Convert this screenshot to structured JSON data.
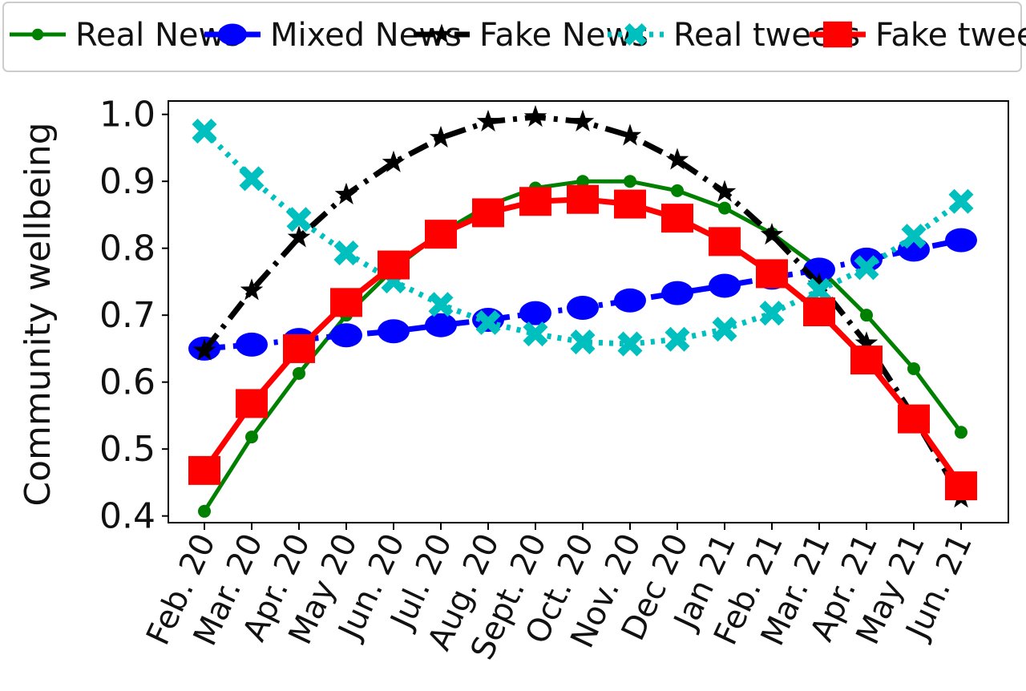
{
  "chart_data": {
    "type": "line",
    "title": "",
    "xlabel": "",
    "ylabel": "Community wellbeing",
    "ylim": [
      0.39,
      1.02
    ],
    "yticks": [
      "0.4",
      "0.5",
      "0.6",
      "0.7",
      "0.8",
      "0.9",
      "1.0"
    ],
    "categories": [
      "Feb. 20",
      "Mar. 20",
      "Apr. 20",
      "May 20",
      "Jun. 20",
      "Jul. 20",
      "Aug. 20",
      "Sept. 20",
      "Oct. 20",
      "Nov. 20",
      "Dec 20",
      "Jan 21",
      "Feb. 21",
      "Mar. 21",
      "Apr. 21",
      "May 21",
      "Jun. 21"
    ],
    "grid": false,
    "legend_position": "top",
    "series": [
      {
        "name": "Real News",
        "color": "#008000",
        "marker": "dot",
        "dash": "solid",
        "values": [
          0.407,
          0.518,
          0.613,
          0.7,
          0.769,
          0.823,
          0.864,
          0.89,
          0.9,
          0.9,
          0.886,
          0.86,
          0.822,
          0.77,
          0.7,
          0.62,
          0.525
        ]
      },
      {
        "name": "Mixed News",
        "color": "#0000ff",
        "marker": "ellipse",
        "dash": "dashdot",
        "values": [
          0.65,
          0.656,
          0.663,
          0.67,
          0.676,
          0.685,
          0.693,
          0.703,
          0.711,
          0.722,
          0.733,
          0.744,
          0.756,
          0.768,
          0.783,
          0.798,
          0.812
        ]
      },
      {
        "name": "Fake News",
        "color": "#000000",
        "marker": "star",
        "dash": "dashdot",
        "values": [
          0.647,
          0.737,
          0.816,
          0.88,
          0.928,
          0.965,
          0.989,
          0.996,
          0.989,
          0.968,
          0.932,
          0.884,
          0.82,
          0.746,
          0.658,
          0.548,
          0.427
        ]
      },
      {
        "name": "Real tweets",
        "color": "#00bfbf",
        "marker": "x",
        "dash": "dotted",
        "values": [
          0.975,
          0.904,
          0.843,
          0.793,
          0.751,
          0.716,
          0.689,
          0.672,
          0.66,
          0.657,
          0.664,
          0.679,
          0.703,
          0.737,
          0.771,
          0.818,
          0.87
        ]
      },
      {
        "name": "Fake tweets",
        "color": "#ff0000",
        "marker": "square",
        "dash": "solid",
        "values": [
          0.468,
          0.568,
          0.65,
          0.719,
          0.775,
          0.821,
          0.853,
          0.87,
          0.873,
          0.866,
          0.845,
          0.81,
          0.762,
          0.705,
          0.633,
          0.545,
          0.445
        ]
      }
    ]
  }
}
